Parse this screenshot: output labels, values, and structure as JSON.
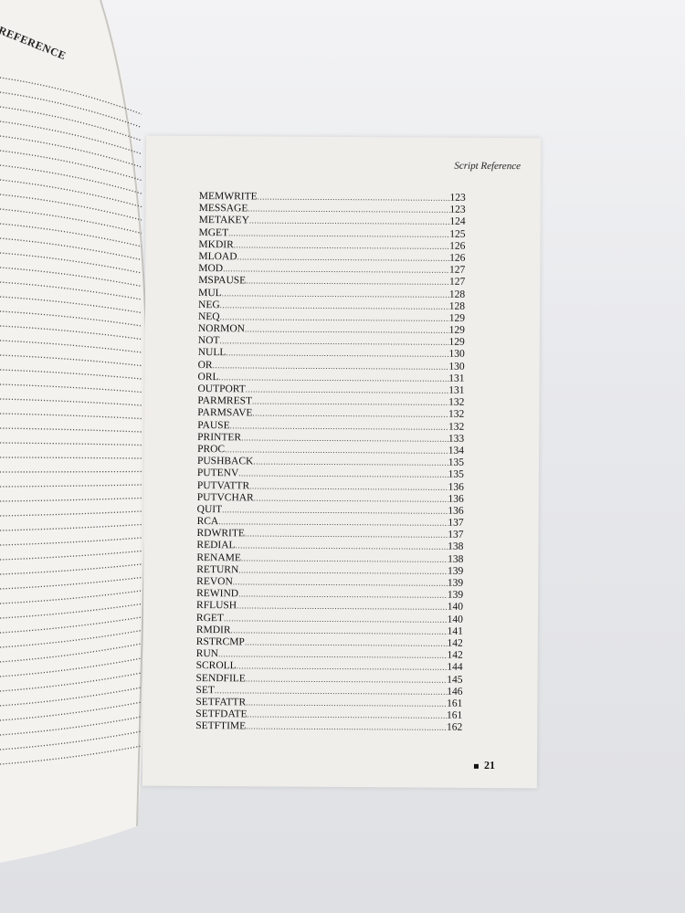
{
  "left_page": {
    "header": "REFERENCE"
  },
  "right_page": {
    "running_head": "Script Reference",
    "entries": [
      {
        "name": "MEMWRITE",
        "page": "123"
      },
      {
        "name": "MESSAGE",
        "page": "123"
      },
      {
        "name": "METAKEY",
        "page": "124"
      },
      {
        "name": "MGET",
        "page": "125"
      },
      {
        "name": "MKDIR",
        "page": "126"
      },
      {
        "name": "MLOAD",
        "page": "126"
      },
      {
        "name": "MOD",
        "page": "127"
      },
      {
        "name": "MSPAUSE",
        "page": "127"
      },
      {
        "name": "MUL",
        "page": "128"
      },
      {
        "name": "NEG",
        "page": "128"
      },
      {
        "name": "NEQ",
        "page": "129"
      },
      {
        "name": "NORMON",
        "page": "129"
      },
      {
        "name": "NOT",
        "page": "129"
      },
      {
        "name": "NULL",
        "page": "130"
      },
      {
        "name": "OR",
        "page": "130"
      },
      {
        "name": "ORL",
        "page": "131"
      },
      {
        "name": "OUTPORT",
        "page": "131"
      },
      {
        "name": "PARMREST",
        "page": "132"
      },
      {
        "name": "PARMSAVE",
        "page": "132"
      },
      {
        "name": "PAUSE",
        "page": "132"
      },
      {
        "name": "PRINTER",
        "page": "133"
      },
      {
        "name": "PROC",
        "page": "134"
      },
      {
        "name": "PUSHBACK",
        "page": "135"
      },
      {
        "name": "PUTENV",
        "page": "135"
      },
      {
        "name": "PUTVATTR",
        "page": "136"
      },
      {
        "name": "PUTVCHAR",
        "page": "136"
      },
      {
        "name": "QUIT",
        "page": "136"
      },
      {
        "name": "RCA",
        "page": "137"
      },
      {
        "name": "RDWRITE",
        "page": "137"
      },
      {
        "name": "REDIAL",
        "page": "138"
      },
      {
        "name": "RENAME",
        "page": "138"
      },
      {
        "name": "RETURN",
        "page": "139"
      },
      {
        "name": "REVON",
        "page": "139"
      },
      {
        "name": "REWIND",
        "page": "139"
      },
      {
        "name": "RFLUSH",
        "page": "140"
      },
      {
        "name": "RGET",
        "page": "140"
      },
      {
        "name": "RMDIR",
        "page": "141"
      },
      {
        "name": "RSTRCMP",
        "page": "142"
      },
      {
        "name": "RUN",
        "page": "142"
      },
      {
        "name": "SCROLL",
        "page": "144"
      },
      {
        "name": "SENDFILE",
        "page": "145"
      },
      {
        "name": "SET",
        "page": "146"
      },
      {
        "name": "SETFATTR",
        "page": "161"
      },
      {
        "name": "SETFDATE",
        "page": "161"
      },
      {
        "name": "SETFTIME",
        "page": "162"
      }
    ],
    "page_number": "21"
  }
}
